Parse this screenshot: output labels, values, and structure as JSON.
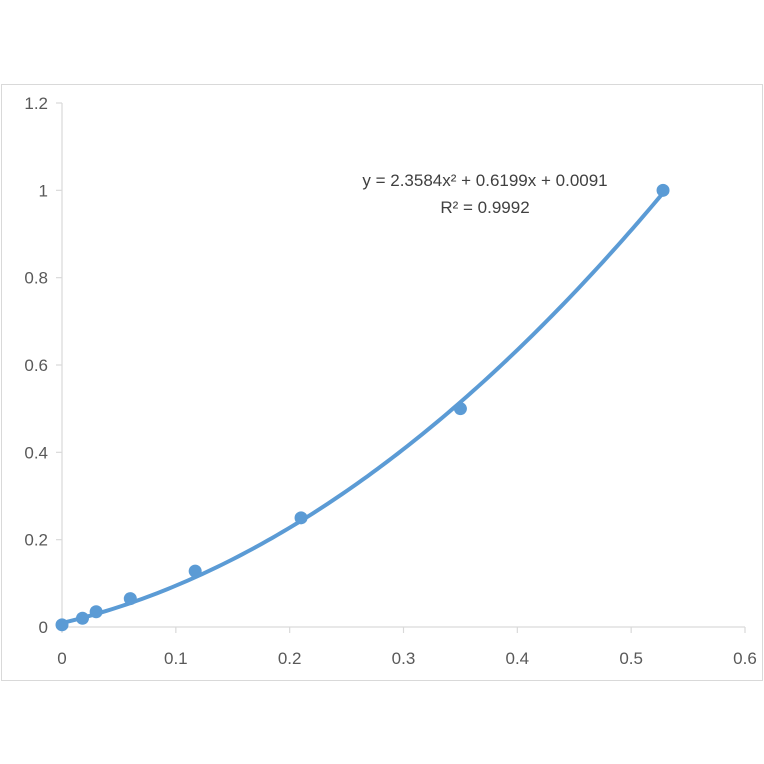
{
  "chart_data": {
    "type": "scatter",
    "title": "",
    "xlabel": "",
    "ylabel": "",
    "xlim": [
      0,
      0.6
    ],
    "ylim": [
      0,
      1.2
    ],
    "x_ticks": [
      "0",
      "0.1",
      "0.2",
      "0.3",
      "0.4",
      "0.5",
      "0.6"
    ],
    "y_ticks": [
      "0",
      "0.2",
      "0.4",
      "0.6",
      "0.8",
      "1",
      "1.2"
    ],
    "grid": false,
    "legend": "none",
    "series": [
      {
        "color": "#5B9BD5",
        "x": [
          0.0,
          0.018,
          0.03,
          0.06,
          0.117,
          0.21,
          0.35,
          0.528
        ],
        "y": [
          0.005,
          0.02,
          0.035,
          0.065,
          0.128,
          0.25,
          0.5,
          1.0
        ]
      }
    ],
    "trendline": {
      "type": "polynomial",
      "order": 2,
      "coefficients": [
        2.3584,
        0.6199,
        0.0091
      ],
      "x_range": [
        0,
        0.528
      ],
      "color": "#5B9BD5",
      "equation": "y = 2.3584x² + 0.6199x + 0.0091",
      "r_squared": "R² = 0.9992"
    }
  }
}
